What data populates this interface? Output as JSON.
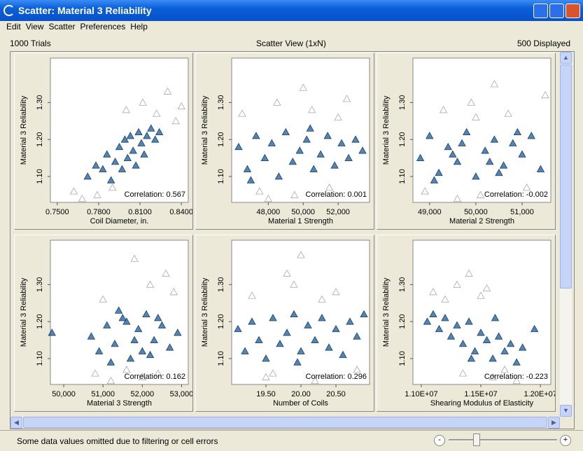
{
  "window": {
    "title": "Scatter: Material 3 Reliability",
    "menu": [
      "Edit",
      "View",
      "Scatter",
      "Preferences",
      "Help"
    ],
    "info": {
      "trials": "1000 Trials",
      "view": "Scatter View (1xN)",
      "displayed": "500 Displayed"
    },
    "status": "Some data values omitted due to filtering or cell errors",
    "zoom_minus": "-",
    "zoom_plus": "+"
  },
  "chart_data": [
    {
      "type": "scatter",
      "x_label": "Coil Diameter, in.",
      "y_label": "Material 3 Reliability",
      "annotation": "Correlation: 0.567",
      "xlim": [
        0.745,
        0.845
      ],
      "xticks": [
        {
          "value": 0.75,
          "label": "0.7500"
        },
        {
          "value": 0.78,
          "label": "0.7800"
        },
        {
          "value": 0.81,
          "label": "0.8100"
        },
        {
          "value": 0.84,
          "label": "0.8400"
        }
      ],
      "ylim": [
        1.03,
        1.42
      ],
      "yticks": [
        {
          "value": 1.1,
          "label": "1.10"
        },
        {
          "value": 1.2,
          "label": "1.20"
        },
        {
          "value": 1.3,
          "label": "1.30"
        }
      ],
      "series": [
        {
          "color": "#aaaaaa",
          "filled": false,
          "x": [
            0.762,
            0.768,
            0.779,
            0.79,
            0.8,
            0.812,
            0.822,
            0.83,
            0.836,
            0.84
          ],
          "values": [
            1.06,
            1.04,
            1.05,
            1.07,
            1.28,
            1.3,
            1.27,
            1.33,
            1.25,
            1.29
          ]
        },
        {
          "color": "#1f5a96",
          "filled": true,
          "x": [
            0.772,
            0.778,
            0.783,
            0.786,
            0.789,
            0.792,
            0.795,
            0.797,
            0.799,
            0.801,
            0.803,
            0.805,
            0.807,
            0.809,
            0.811,
            0.813,
            0.815,
            0.818,
            0.821,
            0.824
          ],
          "values": [
            1.1,
            1.13,
            1.12,
            1.16,
            1.09,
            1.14,
            1.18,
            1.12,
            1.2,
            1.15,
            1.21,
            1.17,
            1.13,
            1.22,
            1.19,
            1.16,
            1.21,
            1.23,
            1.2,
            1.22
          ]
        }
      ]
    },
    {
      "type": "scatter",
      "x_label": "Material 1 Strength",
      "y_label": "Material 3 Reliability",
      "annotation": "Correlation: 0.001",
      "xlim": [
        45900,
        53800
      ],
      "xticks": [
        {
          "value": 48000,
          "label": "48,000"
        },
        {
          "value": 50000,
          "label": "50,000"
        },
        {
          "value": 52000,
          "label": "52,000"
        }
      ],
      "ylim": [
        1.03,
        1.42
      ],
      "yticks": [
        {
          "value": 1.1,
          "label": "1.10"
        },
        {
          "value": 1.2,
          "label": "1.20"
        },
        {
          "value": 1.3,
          "label": "1.30"
        }
      ],
      "series": [
        {
          "color": "#aaaaaa",
          "filled": false,
          "x": [
            46500,
            47500,
            48500,
            49500,
            50500,
            51500,
            52500,
            48000,
            50000,
            52000
          ],
          "values": [
            1.27,
            1.06,
            1.3,
            1.05,
            1.28,
            1.07,
            1.31,
            1.04,
            1.34,
            1.26
          ]
        },
        {
          "color": "#1f5a96",
          "filled": true,
          "x": [
            46300,
            46800,
            47300,
            47800,
            48200,
            48600,
            49000,
            49400,
            49800,
            50200,
            50600,
            51000,
            51400,
            51800,
            52200,
            52600,
            53000,
            53400,
            47000,
            50400
          ],
          "values": [
            1.18,
            1.12,
            1.21,
            1.15,
            1.19,
            1.1,
            1.22,
            1.14,
            1.17,
            1.2,
            1.12,
            1.16,
            1.21,
            1.13,
            1.19,
            1.15,
            1.2,
            1.17,
            1.09,
            1.23
          ]
        }
      ]
    },
    {
      "type": "scatter",
      "x_label": "Material 2 Strength",
      "y_label": "Material 3 Reliability",
      "annotation": "Correlation: -0.002",
      "xlim": [
        48640,
        51620
      ],
      "xticks": [
        {
          "value": 49000,
          "label": "49,000"
        },
        {
          "value": 50000,
          "label": "50,000"
        },
        {
          "value": 51000,
          "label": "51,000"
        }
      ],
      "ylim": [
        1.03,
        1.42
      ],
      "yticks": [
        {
          "value": 1.1,
          "label": "1.10"
        },
        {
          "value": 1.2,
          "label": "1.20"
        },
        {
          "value": 1.3,
          "label": "1.30"
        }
      ],
      "series": [
        {
          "color": "#aaaaaa",
          "filled": false,
          "x": [
            48900,
            49300,
            49900,
            50100,
            50700,
            51100,
            51500,
            49600,
            50400,
            50000
          ],
          "values": [
            1.06,
            1.28,
            1.3,
            1.05,
            1.27,
            1.07,
            1.32,
            1.04,
            1.35,
            1.26
          ]
        },
        {
          "color": "#1f5a96",
          "filled": true,
          "x": [
            48800,
            49000,
            49200,
            49400,
            49600,
            49800,
            50000,
            50200,
            50400,
            50600,
            50800,
            51000,
            51200,
            51400,
            49100,
            49700,
            50300,
            50900,
            50500,
            49500
          ],
          "values": [
            1.15,
            1.21,
            1.11,
            1.18,
            1.14,
            1.22,
            1.1,
            1.17,
            1.2,
            1.13,
            1.19,
            1.16,
            1.21,
            1.12,
            1.09,
            1.19,
            1.14,
            1.22,
            1.11,
            1.16
          ]
        }
      ]
    },
    {
      "type": "scatter",
      "x_label": "Material 3 Strength",
      "y_label": "Material 3 Reliability",
      "annotation": "Correlation: 0.162",
      "xlim": [
        49660,
        53170
      ],
      "xticks": [
        {
          "value": 50000,
          "label": "50,000"
        },
        {
          "value": 51000,
          "label": "51,000"
        },
        {
          "value": 52000,
          "label": "52,000"
        },
        {
          "value": 53000,
          "label": "53,000"
        }
      ],
      "ylim": [
        1.03,
        1.42
      ],
      "yticks": [
        {
          "value": 1.1,
          "label": "1.10"
        },
        {
          "value": 1.2,
          "label": "1.20"
        },
        {
          "value": 1.3,
          "label": "1.30"
        }
      ],
      "series": [
        {
          "color": "#aaaaaa",
          "filled": false,
          "x": [
            50800,
            51200,
            51600,
            52000,
            52400,
            52800,
            51000,
            51800,
            52600,
            52200
          ],
          "values": [
            1.06,
            1.04,
            1.07,
            1.05,
            1.06,
            1.28,
            1.26,
            1.37,
            1.33,
            1.3
          ]
        },
        {
          "color": "#1f5a96",
          "filled": true,
          "x": [
            49700,
            50700,
            50900,
            51100,
            51300,
            51500,
            51700,
            51900,
            52100,
            52300,
            52500,
            52700,
            52900,
            51200,
            51600,
            52000,
            52400,
            51800,
            52200,
            51400
          ],
          "values": [
            1.17,
            1.16,
            1.12,
            1.19,
            1.14,
            1.21,
            1.1,
            1.18,
            1.22,
            1.15,
            1.19,
            1.13,
            1.17,
            1.09,
            1.2,
            1.12,
            1.21,
            1.15,
            1.11,
            1.23
          ]
        }
      ]
    },
    {
      "type": "scatter",
      "x_label": "Number of Coils",
      "y_label": "Material 3 Reliability",
      "annotation": "Correlation: 0.296",
      "xlim": [
        19.01,
        20.98
      ],
      "xticks": [
        {
          "value": 19.5,
          "label": "19.50"
        },
        {
          "value": 20,
          "label": "20.00"
        },
        {
          "value": 20.5,
          "label": "20.50"
        }
      ],
      "ylim": [
        1.03,
        1.42
      ],
      "yticks": [
        {
          "value": 1.1,
          "label": "1.10"
        },
        {
          "value": 1.2,
          "label": "1.20"
        },
        {
          "value": 1.3,
          "label": "1.30"
        }
      ],
      "series": [
        {
          "color": "#aaaaaa",
          "filled": false,
          "x": [
            19.3,
            19.6,
            19.9,
            20.2,
            20.5,
            20.8,
            19.8,
            20.0,
            20.3,
            19.5
          ],
          "values": [
            1.27,
            1.06,
            1.3,
            1.04,
            1.28,
            1.07,
            1.33,
            1.38,
            1.26,
            1.05
          ]
        },
        {
          "color": "#1f5a96",
          "filled": true,
          "x": [
            19.1,
            19.2,
            19.3,
            19.4,
            19.5,
            19.6,
            19.7,
            19.8,
            19.9,
            20.0,
            20.1,
            20.2,
            20.3,
            20.4,
            20.5,
            20.6,
            20.7,
            20.8,
            20.9,
            19.95
          ],
          "values": [
            1.18,
            1.12,
            1.2,
            1.15,
            1.1,
            1.21,
            1.14,
            1.17,
            1.22,
            1.12,
            1.19,
            1.15,
            1.21,
            1.13,
            1.18,
            1.11,
            1.2,
            1.16,
            1.22,
            1.09
          ]
        }
      ]
    },
    {
      "type": "scatter",
      "x_label": "Shearing Modulus of Elasticity",
      "y_label": "Material 3 Reliability",
      "annotation": "Correlation: -0.223",
      "xlim": [
        10930000,
        12087000
      ],
      "xticks": [
        {
          "value": 11000000,
          "label": "1.10E+07"
        },
        {
          "value": 11500000,
          "label": "1.15E+07"
        },
        {
          "value": 12000000,
          "label": "1.20E+07"
        }
      ],
      "ylim": [
        1.03,
        1.42
      ],
      "yticks": [
        {
          "value": 1.1,
          "label": "1.10"
        },
        {
          "value": 1.2,
          "label": "1.20"
        },
        {
          "value": 1.3,
          "label": "1.30"
        }
      ],
      "series": [
        {
          "color": "#aaaaaa",
          "filled": false,
          "x": [
            11100000,
            11200000,
            11300000,
            11400000,
            11500000,
            11600000,
            11700000,
            11800000,
            11350000,
            11550000
          ],
          "values": [
            1.28,
            1.26,
            1.3,
            1.33,
            1.27,
            1.05,
            1.07,
            1.04,
            1.06,
            1.29
          ]
        },
        {
          "color": "#1f5a96",
          "filled": true,
          "x": [
            11050000,
            11100000,
            11150000,
            11200000,
            11250000,
            11300000,
            11350000,
            11400000,
            11450000,
            11500000,
            11550000,
            11600000,
            11650000,
            11700000,
            11750000,
            11800000,
            11850000,
            11950000,
            11420000,
            11620000
          ],
          "values": [
            1.2,
            1.22,
            1.18,
            1.21,
            1.16,
            1.19,
            1.14,
            1.2,
            1.12,
            1.17,
            1.15,
            1.1,
            1.16,
            1.12,
            1.14,
            1.09,
            1.13,
            1.18,
            1.1,
            1.21
          ]
        }
      ]
    }
  ]
}
